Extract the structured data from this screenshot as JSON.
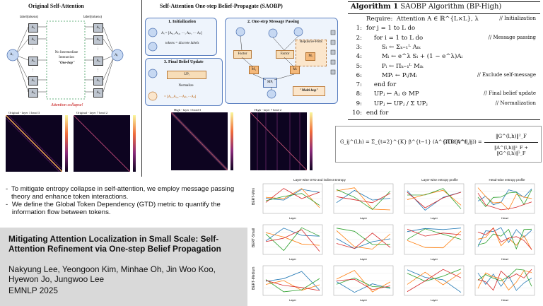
{
  "left_panel": {
    "title": "Original Self-Attention",
    "label_top": "label(tokens)",
    "label_top_right": "label(tokens)",
    "tokens": [
      "A₁",
      "A₂",
      "⋮",
      "A₅",
      "⋮",
      "A₇",
      "A₈"
    ],
    "node_left": "Aᵢ",
    "node_right": "Aⱼ",
    "middle_text_1": "No Intermediate",
    "middle_text_2": "Interaction",
    "middle_text_3": "\"One-hop\"",
    "collapse_note": "Attention collapse!",
    "heatmap_1_title": "Original - layer 1 head 3",
    "heatmap_2_title": "Original - layer 7 head 2"
  },
  "mid_panel": {
    "title": "Self-Attention One-step Belief-Propagate (SAOBP)",
    "init_title": "1. Initialization",
    "init_formula": "Aᵢ = [Aᵢ₁, Aᵢ₂, ⋯, Aᵢₖ, ⋯ Aᵢₗ]",
    "init_note": "tokens = discrete labels",
    "msg_title": "2. One-step Message Passing",
    "factor": "Factor",
    "repulsive": "Repulsive-Potts",
    "msg_labels": [
      "M₁",
      "Mᵢ",
      "Mₗ",
      "MPᵢ"
    ],
    "multi_hop": "\"Multi-hop\"",
    "final_title": "3. Final Belief Update",
    "final_items": [
      "UPᵢ",
      "Normalize"
    ],
    "final_formula": "= [Aᵢ₁,Aᵢ₂,⋯Aᵢₖ,⋯Aᵢₗ]",
    "heatmap_1_title": "High - layer 1 head 3",
    "heatmap_2_title": "High - layer 7 head 2"
  },
  "algorithm": {
    "title_bold": "Algorithm 1",
    "title_rest": "SAOBP Algorithm (BP-High)",
    "lines": [
      {
        "num": "",
        "text": "Require:  Attention A ∈ ℝ^{L×L}, λ",
        "comment": "// Initialization"
      },
      {
        "num": "1:",
        "text": "for j = 1 to L do",
        "comment": ""
      },
      {
        "num": "2:",
        "text": "    for i = 1 to L do",
        "comment": "// Message passing"
      },
      {
        "num": "3:",
        "text": "        Sᵢ ← Σₖ₌₁ᴸ Aᵢₖ",
        "comment": ""
      },
      {
        "num": "4:",
        "text": "        Mᵢ ← e^λ Sᵢ + (1 − e^λ)Aᵢ",
        "comment": ""
      },
      {
        "num": "5:",
        "text": "        Pᵢ ← Πₖ₌₁ᴸ Mᵢₖ",
        "comment": ""
      },
      {
        "num": "6:",
        "text": "        MPᵢ ← Pᵢ/Mᵢ",
        "comment": "// Exclude self-message"
      },
      {
        "num": "7:",
        "text": "    end for",
        "comment": ""
      },
      {
        "num": "8:",
        "text": "    UPⱼ ← Aⱼ ⊙ MP",
        "comment": "// Final belief update"
      },
      {
        "num": "9:",
        "text": "    UPⱼ ← UPⱼ / Σ UPⱼ",
        "comment": "// Normalization"
      },
      {
        "num": "10:",
        "text": "end for",
        "comment": ""
      }
    ]
  },
  "gtd_formula": {
    "lhs": "G_ij^(l,h) = Σ_{t=2}^{K} β^{t−1} (A^{(l,h)})^t_ij",
    "mid": "GTD(A^(l,h)) =",
    "num": "‖G^(l,h)‖²_F",
    "den": "‖A^(l,h)‖²_F + ‖G^(l,h)‖²_F"
  },
  "bullets": [
    "To mitigate entropy collapse in self-attention, we employ message passing theory and enhance token interactions.",
    "We define the Global Token Dependency (GTD) metric to quantify the information flow between tokens."
  ],
  "paper": {
    "title": "Mitigating Attention Localization in Small Scale: Self-Attention Refinement via One-step Belief Propagation",
    "authors": "Nakyung Lee, Yeongoon Kim, Minhae Oh, Jin Woo Koo, Hyewon Jo, Jungwoo Lee",
    "venue": "EMNLP 2025"
  },
  "plots": {
    "col_titles": [
      "Layer-wise GTD and indirect Entropy",
      "Layer-wise entropy profile",
      "Head-wise entropy profile"
    ],
    "row_labels": [
      "BERT-Mini",
      "BERT-Small",
      "BERT-Medium"
    ],
    "xlabels": [
      "Layer",
      "Layer",
      "Layer",
      "Head"
    ],
    "colors": [
      "#1f77b4",
      "#ff7f0e",
      "#2ca02c",
      "#d62728"
    ]
  }
}
